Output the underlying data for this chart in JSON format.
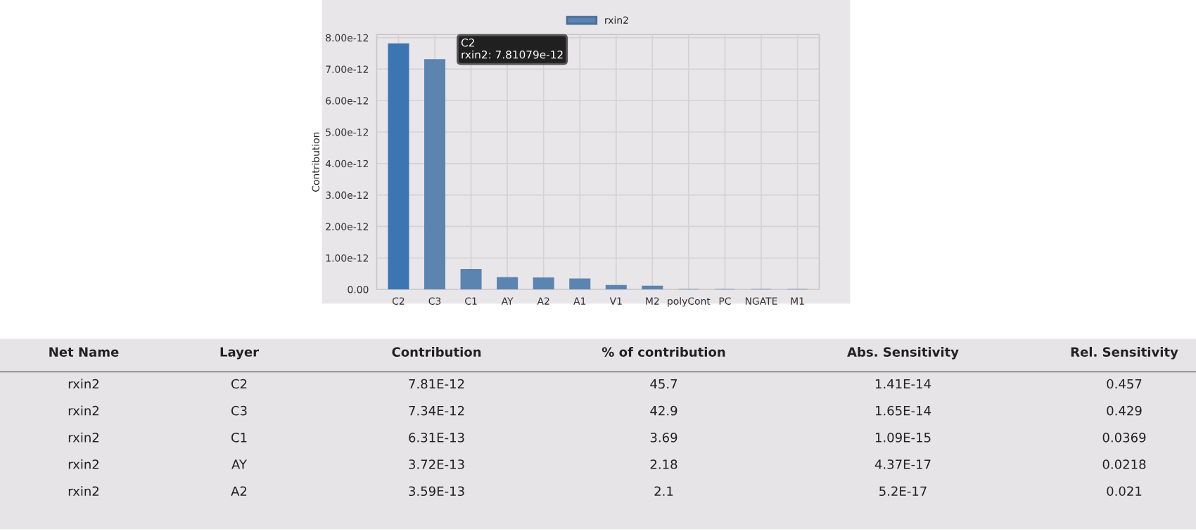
{
  "chart_data": {
    "type": "bar",
    "ylabel": "Contribution",
    "categories": [
      "C2",
      "C3",
      "C1",
      "AY",
      "A2",
      "A1",
      "V1",
      "M2",
      "polyCont",
      "PC",
      "NGATE",
      "M1"
    ],
    "series": [
      {
        "name": "rxin2",
        "color": "#5b84b1",
        "colors": [
          "#3b76b3",
          "#5b84b1",
          "#5b84b1",
          "#5b84b1",
          "#5b84b1",
          "#5b84b1",
          "#5b84b1",
          "#5b84b1",
          "#5b84b1",
          "#5b84b1",
          "#5b84b1",
          "#5b84b1"
        ],
        "values": [
          7.8e-12,
          7.3e-12,
          6.3e-13,
          3.7e-13,
          3.6e-13,
          3.3e-13,
          1.2e-13,
          1e-13,
          0,
          0,
          0,
          0
        ]
      }
    ],
    "ylim": [
      0,
      8.1e-12
    ],
    "yticks": [
      {
        "value": 0,
        "label": "0.00"
      },
      {
        "value": 1e-12,
        "label": "1.00e-12"
      },
      {
        "value": 2e-12,
        "label": "2.00e-12"
      },
      {
        "value": 3e-12,
        "label": "3.00e-12"
      },
      {
        "value": 4e-12,
        "label": "4.00e-12"
      },
      {
        "value": 5e-12,
        "label": "5.00e-12"
      },
      {
        "value": 6e-12,
        "label": "6.00e-12"
      },
      {
        "value": 7e-12,
        "label": "7.00e-12"
      },
      {
        "value": 8e-12,
        "label": "8.00e-12"
      }
    ],
    "grid": true,
    "legend": "top",
    "annotations": [
      "C2",
      "rxin2: 7.81079e-12",
      "Net Name",
      "Layer",
      "Contribution",
      "% of contribution",
      "Abs. Sensitivity",
      "Rel. Sensitivity",
      "rxin2",
      "C2",
      "7.81E-12",
      "45.7",
      "1.41E-14",
      "0.457",
      "rxin2",
      "C3",
      "7.34E-12",
      "42.9",
      "1.65E-14",
      "0.429",
      "rxin2",
      "C1",
      "6.31E-13",
      "3.69",
      "1.09E-15",
      "0.0369",
      "rxin2",
      "AY",
      "3.72E-13",
      "2.18",
      "4.37E-17",
      "0.0218",
      "rxin2",
      "A2",
      "3.59E-13",
      "2.1",
      "5.2E-17",
      "0.021"
    ]
  }
}
